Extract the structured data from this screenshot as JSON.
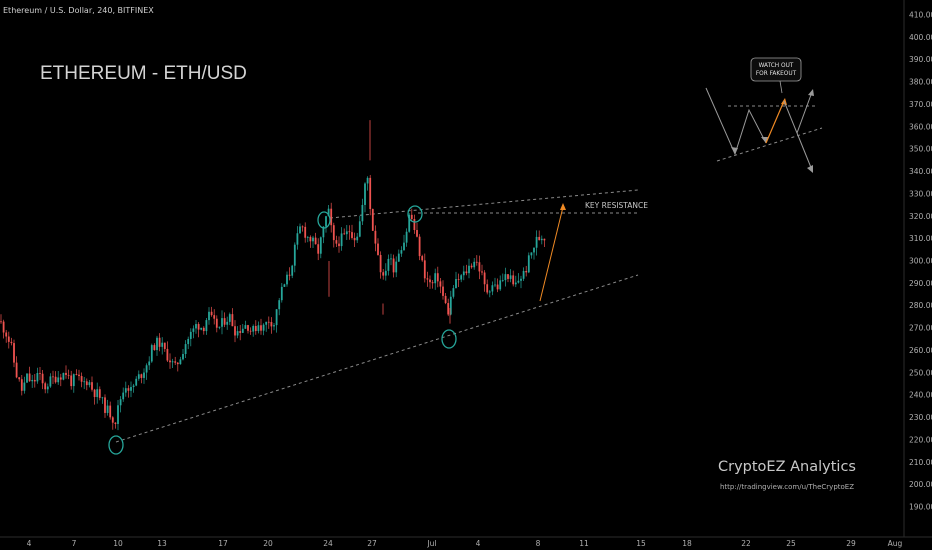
{
  "header": {
    "symbol": "Ethereum / U.S. Dollar, 240, BITFINEX"
  },
  "chart_data": {
    "type": "candlestick",
    "title": "ETHEREUM - ETH/USD",
    "ylim": [
      185,
      415
    ],
    "y_ticks": [
      190,
      200,
      210,
      220,
      230,
      240,
      250,
      260,
      270,
      280,
      290,
      300,
      310,
      320,
      330,
      340,
      350,
      360,
      370,
      380,
      390,
      400,
      410
    ],
    "y_tick_labels": [
      "190.00",
      "200.00",
      "210.00",
      "220.00",
      "230.00",
      "240.00",
      "250.00",
      "260.00",
      "270.00",
      "280.00",
      "290.00",
      "300.00",
      "310.00",
      "320.00",
      "330.00",
      "340.00",
      "350.00",
      "360.00",
      "370.00",
      "380.00",
      "390.00",
      "400.00",
      "410.00"
    ],
    "x_tick_labels": [
      "4",
      "7",
      "10",
      "13",
      "17",
      "20",
      "24",
      "27",
      "Jul",
      "4",
      "8",
      "11",
      "15",
      "18",
      "22",
      "25",
      "29",
      "Aug"
    ],
    "colors": {
      "up": "#26a69a",
      "down": "#ef5350",
      "trendline": "#8a8a8a",
      "projection": "#f08a24",
      "marker": "#26a69a"
    },
    "price_path": [
      [
        0,
        273
      ],
      [
        6,
        268
      ],
      [
        11,
        262
      ],
      [
        16,
        250
      ],
      [
        22,
        242
      ],
      [
        27,
        248
      ],
      [
        33,
        245
      ],
      [
        38,
        250
      ],
      [
        44,
        243
      ],
      [
        49,
        246
      ],
      [
        55,
        248
      ],
      [
        60,
        249
      ],
      [
        66,
        250
      ],
      [
        71,
        246
      ],
      [
        77,
        248
      ],
      [
        82,
        245
      ],
      [
        88,
        247
      ],
      [
        93,
        242
      ],
      [
        99,
        240
      ],
      [
        104,
        235
      ],
      [
        110,
        232
      ],
      [
        115,
        228
      ],
      [
        120,
        238
      ],
      [
        126,
        245
      ],
      [
        131,
        242
      ],
      [
        137,
        247
      ],
      [
        142,
        250
      ],
      [
        148,
        255
      ],
      [
        153,
        262
      ],
      [
        159,
        264
      ],
      [
        164,
        260
      ],
      [
        170,
        256
      ],
      [
        175,
        252
      ],
      [
        181,
        258
      ],
      [
        186,
        264
      ],
      [
        192,
        268
      ],
      [
        197,
        272
      ],
      [
        203,
        270
      ],
      [
        208,
        276
      ],
      [
        214,
        272
      ],
      [
        219,
        270
      ],
      [
        225,
        274
      ],
      [
        230,
        275
      ],
      [
        236,
        268
      ],
      [
        241,
        270
      ],
      [
        247,
        272
      ],
      [
        252,
        268
      ],
      [
        258,
        272
      ],
      [
        263,
        270
      ],
      [
        269,
        274
      ],
      [
        274,
        272
      ],
      [
        280,
        285
      ],
      [
        285,
        290
      ],
      [
        290,
        295
      ],
      [
        296,
        308
      ],
      [
        301,
        316
      ],
      [
        307,
        311
      ],
      [
        312,
        309
      ],
      [
        318,
        304
      ],
      [
        323,
        313
      ],
      [
        328,
        323
      ],
      [
        334,
        307
      ],
      [
        339,
        309
      ],
      [
        345,
        311
      ],
      [
        350,
        314
      ],
      [
        356,
        310
      ],
      [
        361,
        320
      ],
      [
        367,
        340
      ],
      [
        372,
        316
      ],
      [
        377,
        306
      ],
      [
        383,
        291
      ],
      [
        388,
        302
      ],
      [
        394,
        297
      ],
      [
        399,
        305
      ],
      [
        405,
        310
      ],
      [
        410,
        322
      ],
      [
        415,
        313
      ],
      [
        421,
        301
      ],
      [
        426,
        292
      ],
      [
        432,
        289
      ],
      [
        437,
        294
      ],
      [
        443,
        284
      ],
      [
        448,
        277
      ],
      [
        453,
        288
      ],
      [
        459,
        292
      ],
      [
        464,
        294
      ],
      [
        470,
        298
      ],
      [
        475,
        301
      ],
      [
        481,
        295
      ],
      [
        486,
        286
      ],
      [
        492,
        290
      ],
      [
        497,
        288
      ],
      [
        503,
        292
      ],
      [
        508,
        294
      ],
      [
        514,
        288
      ],
      [
        519,
        292
      ],
      [
        525,
        295
      ],
      [
        530,
        302
      ],
      [
        536,
        309
      ],
      [
        541,
        311
      ]
    ],
    "annotations": {
      "key_resistance": "KEY RESISTANCE",
      "watch_out": "WATCH OUT FOR FAKEOUT",
      "watermark": "CryptoEZ Analytics",
      "watermark_url": "http://tradingview.com/u/TheCryptoEZ"
    }
  }
}
